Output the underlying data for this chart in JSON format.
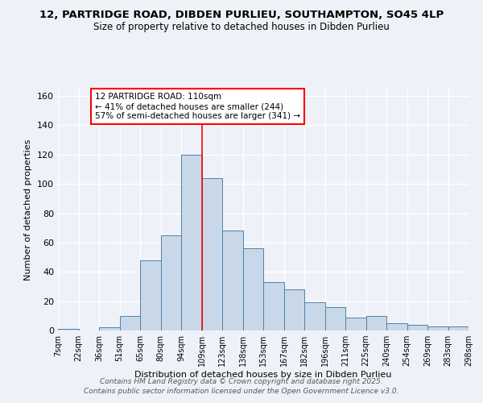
{
  "title1": "12, PARTRIDGE ROAD, DIBDEN PURLIEU, SOUTHAMPTON, SO45 4LP",
  "title2": "Size of property relative to detached houses in Dibden Purlieu",
  "xlabel": "Distribution of detached houses by size in Dibden Purlieu",
  "ylabel": "Number of detached properties",
  "categories": [
    "7sqm",
    "22sqm",
    "36sqm",
    "51sqm",
    "65sqm",
    "80sqm",
    "94sqm",
    "109sqm",
    "123sqm",
    "138sqm",
    "153sqm",
    "167sqm",
    "182sqm",
    "196sqm",
    "211sqm",
    "225sqm",
    "240sqm",
    "254sqm",
    "269sqm",
    "283sqm",
    "298sqm"
  ],
  "values": [
    1,
    0,
    2,
    10,
    48,
    65,
    120,
    104,
    68,
    56,
    33,
    28,
    19,
    16,
    9,
    10,
    5,
    4,
    3,
    3
  ],
  "bar_color": "#c8d8e8",
  "bar_edge_color": "#5080a8",
  "vline_x": 7,
  "vline_color": "red",
  "annotation_text": "12 PARTRIDGE ROAD: 110sqm\n← 41% of detached houses are smaller (244)\n57% of semi-detached houses are larger (341) →",
  "annotation_box_color": "white",
  "annotation_box_edge_color": "red",
  "ylim": [
    0,
    165
  ],
  "yticks": [
    0,
    20,
    40,
    60,
    80,
    100,
    120,
    140,
    160
  ],
  "background_color": "#eef2f8",
  "footer1": "Contains HM Land Registry data © Crown copyright and database right 2025.",
  "footer2": "Contains public sector information licensed under the Open Government Licence v3.0."
}
